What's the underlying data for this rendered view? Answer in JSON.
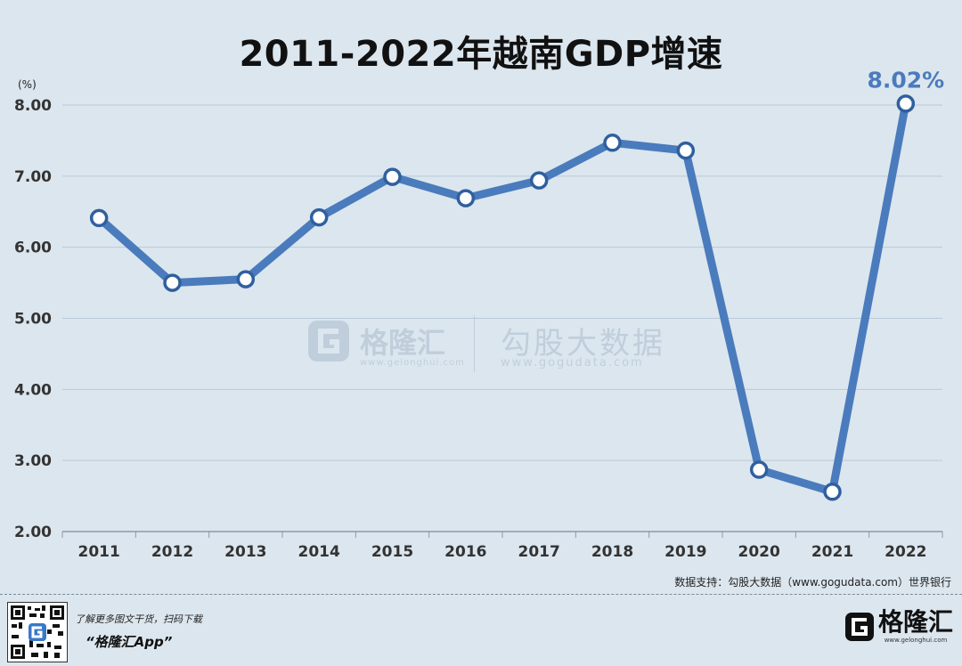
{
  "title": "2011-2022年越南GDP增速",
  "source": "数据支持：勾股大数据（www.gogudata.com）世界银行",
  "footer": {
    "promo_text": "了解更多图文干货，扫码下载",
    "app_name": "“格隆汇App”",
    "logo_text": "格隆汇",
    "logo_url": "www.gelonghui.com"
  },
  "watermark": {
    "brand1": "格隆汇",
    "url1": "www.gelonghui.com",
    "brand2": "勾股大数据",
    "url2": "www.gogudata.com"
  },
  "colors": {
    "line": "#4a7bbd",
    "background": "#dce6ee",
    "highlight_label": "#4a7bbd",
    "grid": "#b9c9d8"
  },
  "chart_data": {
    "type": "line",
    "title": "2011-2022年越南GDP增速",
    "ylabel": "(%)",
    "xlabel": "",
    "categories": [
      "2011",
      "2012",
      "2013",
      "2014",
      "2015",
      "2016",
      "2017",
      "2018",
      "2019",
      "2020",
      "2021",
      "2022"
    ],
    "series": [
      {
        "name": "",
        "values": [
          6.41,
          5.5,
          5.55,
          6.42,
          6.99,
          6.69,
          6.94,
          7.47,
          7.36,
          2.87,
          2.56,
          8.02
        ]
      }
    ],
    "ylim": [
      2.0,
      8.0
    ],
    "yticks": [
      2.0,
      3.0,
      4.0,
      5.0,
      6.0,
      7.0,
      8.0
    ],
    "ytick_labels": [
      "2.00",
      "3.00",
      "4.00",
      "5.00",
      "6.00",
      "7.00",
      "8.00"
    ],
    "data_labels": [
      {
        "index": 11,
        "text": "8.02%"
      }
    ],
    "grid": true,
    "legend": "none"
  }
}
